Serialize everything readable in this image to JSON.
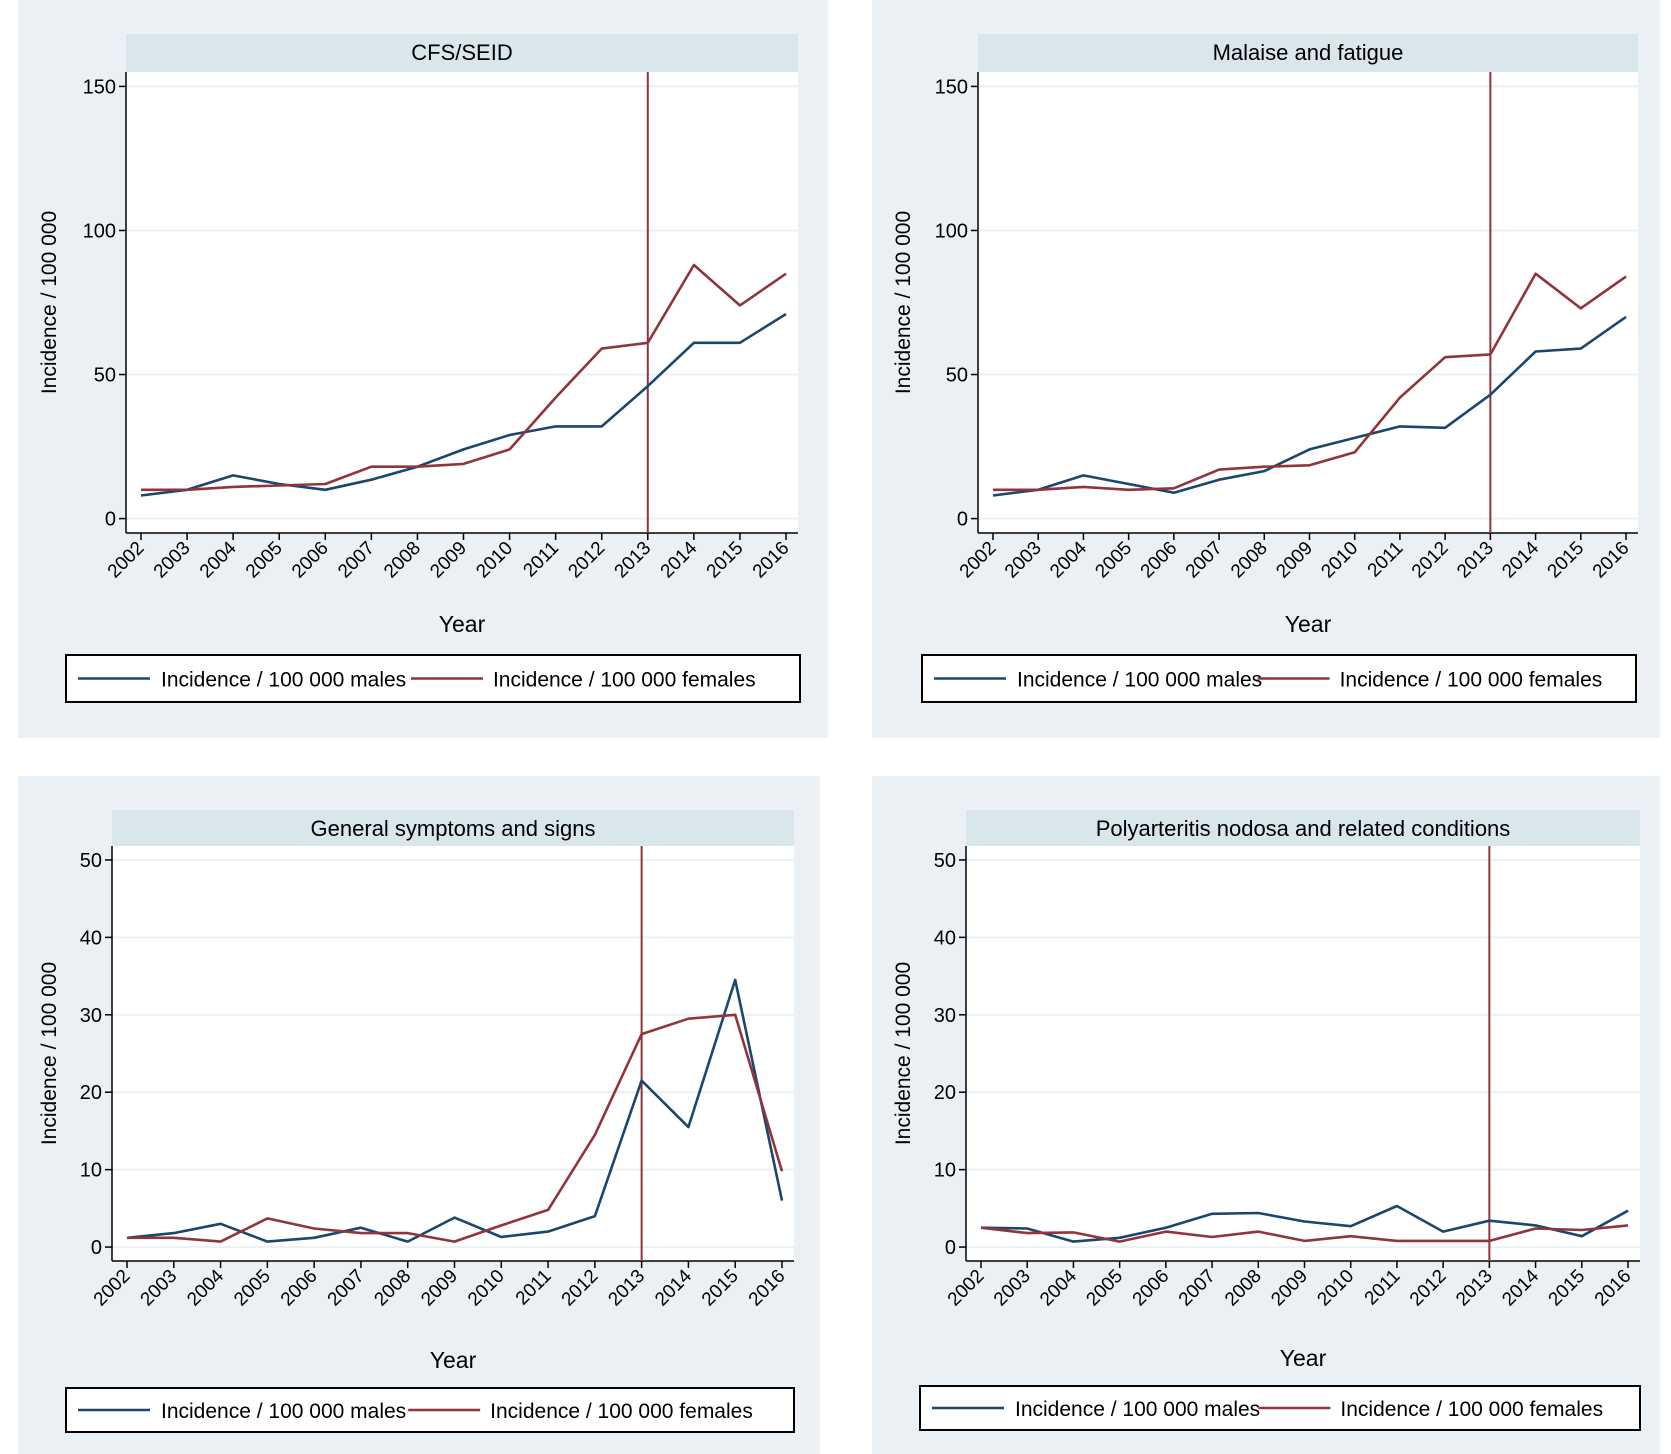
{
  "chart_data": [
    {
      "type": "line",
      "title": "CFS/SEID",
      "xlabel": "Year",
      "ylabel": "Incidence / 100 000",
      "categories": [
        "2002",
        "2003",
        "2004",
        "2005",
        "2006",
        "2007",
        "2008",
        "2009",
        "2010",
        "2011",
        "2012",
        "2013",
        "2014",
        "2015",
        "2016"
      ],
      "yticks": [
        0,
        50,
        100,
        150
      ],
      "ylim": [
        -5,
        155
      ],
      "grid": true,
      "reference_line_x": "2013",
      "legend_position": "bottom",
      "series": [
        {
          "name": "Incidence / 100 000 males",
          "color": "#1a476f",
          "values": [
            8,
            10,
            15,
            12,
            10,
            13.5,
            18,
            24,
            29,
            32,
            32,
            46,
            61,
            61,
            71
          ]
        },
        {
          "name": "Incidence / 100 000 females",
          "color": "#90353b",
          "values": [
            10,
            10,
            11,
            11.5,
            12,
            18,
            18,
            19,
            24,
            42,
            59,
            61,
            88,
            74,
            85
          ]
        }
      ]
    },
    {
      "type": "line",
      "title": "Malaise and fatigue",
      "xlabel": "Year",
      "ylabel": "Incidence / 100 000",
      "categories": [
        "2002",
        "2003",
        "2004",
        "2005",
        "2006",
        "2007",
        "2008",
        "2009",
        "2010",
        "2011",
        "2012",
        "2013",
        "2014",
        "2015",
        "2016"
      ],
      "yticks": [
        0,
        50,
        100,
        150
      ],
      "ylim": [
        -5,
        155
      ],
      "grid": true,
      "reference_line_x": "2013",
      "legend_position": "bottom",
      "series": [
        {
          "name": "Incidence / 100 000 males",
          "color": "#1a476f",
          "values": [
            8,
            10,
            15,
            12,
            9,
            13.5,
            16.5,
            24,
            28,
            32,
            31.5,
            43,
            58,
            59,
            70
          ]
        },
        {
          "name": "Incidence / 100 000 females",
          "color": "#90353b",
          "values": [
            10,
            10,
            11,
            10,
            10.5,
            17,
            18,
            18.5,
            23,
            42,
            56,
            57,
            85,
            73,
            84
          ]
        }
      ]
    },
    {
      "type": "line",
      "title": "General symptoms and signs",
      "xlabel": "Year",
      "ylabel": "Incidence / 100 000",
      "categories": [
        "2002",
        "2003",
        "2004",
        "2005",
        "2006",
        "2007",
        "2008",
        "2009",
        "2010",
        "2011",
        "2012",
        "2013",
        "2014",
        "2015",
        "2016"
      ],
      "yticks": [
        0,
        10,
        20,
        30,
        40,
        50
      ],
      "ylim": [
        -1.8,
        51.8
      ],
      "grid": true,
      "reference_line_x": "2013",
      "legend_position": "bottom",
      "series": [
        {
          "name": "Incidence / 100 000 males",
          "color": "#1a476f",
          "values": [
            1.2,
            1.8,
            3.0,
            0.7,
            1.2,
            2.5,
            0.7,
            3.8,
            1.3,
            2.0,
            4.0,
            21.5,
            15.5,
            34.5,
            6.0
          ]
        },
        {
          "name": "Incidence / 100 000 females",
          "color": "#90353b",
          "values": [
            1.2,
            1.2,
            0.7,
            3.7,
            2.4,
            1.8,
            1.8,
            0.7,
            2.8,
            4.8,
            14.5,
            27.5,
            29.5,
            30.0,
            9.8
          ]
        }
      ]
    },
    {
      "type": "line",
      "title": "Polyarteritis nodosa and related conditions",
      "xlabel": "Year",
      "ylabel": "Incidence / 100 000",
      "categories": [
        "2002",
        "2003",
        "2004",
        "2005",
        "2006",
        "2007",
        "2008",
        "2009",
        "2010",
        "2011",
        "2012",
        "2013",
        "2014",
        "2015",
        "2016"
      ],
      "yticks": [
        0,
        10,
        20,
        30,
        40,
        50
      ],
      "ylim": [
        -1.8,
        51.8
      ],
      "grid": true,
      "reference_line_x": "2013",
      "legend_position": "bottom",
      "series": [
        {
          "name": "Incidence / 100 000 males",
          "color": "#1a476f",
          "values": [
            2.5,
            2.4,
            0.7,
            1.2,
            2.5,
            4.3,
            4.4,
            3.3,
            2.7,
            5.3,
            2.0,
            3.4,
            2.8,
            1.4,
            4.7
          ]
        },
        {
          "name": "Incidence / 100 000 females",
          "color": "#90353b",
          "values": [
            2.5,
            1.8,
            1.9,
            0.7,
            2.0,
            1.3,
            2.0,
            0.8,
            1.4,
            0.8,
            0.8,
            0.8,
            2.4,
            2.2,
            2.8
          ]
        }
      ]
    }
  ]
}
